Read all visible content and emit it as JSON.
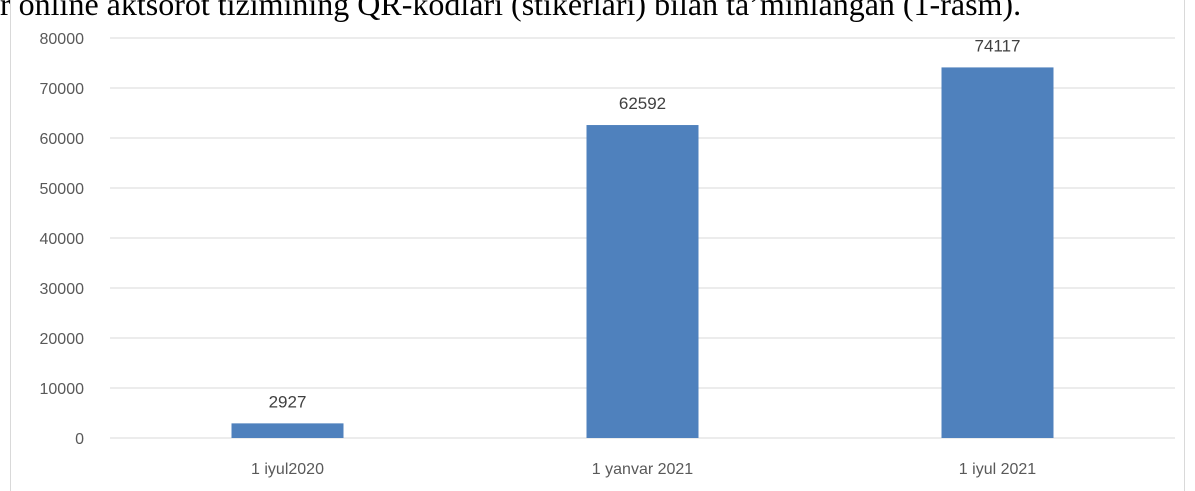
{
  "header_text": "r online aktsorot tizimining QR-kodlari (stikerlari) bilan ta’minlangan (1-rasm).",
  "colors": {
    "bar": "#4f81bd",
    "grid": "#d9d9d9",
    "tick": "#595959"
  },
  "chart_data": {
    "type": "bar",
    "title": "",
    "xlabel": "",
    "ylabel": "",
    "categories": [
      "1 iyul2020",
      "1 yanvar 2021",
      "1 iyul 2021"
    ],
    "values": [
      2927,
      62592,
      74117
    ],
    "ylim": [
      0,
      80000
    ],
    "yticks": [
      0,
      10000,
      20000,
      30000,
      40000,
      50000,
      60000,
      70000,
      80000
    ],
    "grid": true,
    "legend": "none"
  }
}
